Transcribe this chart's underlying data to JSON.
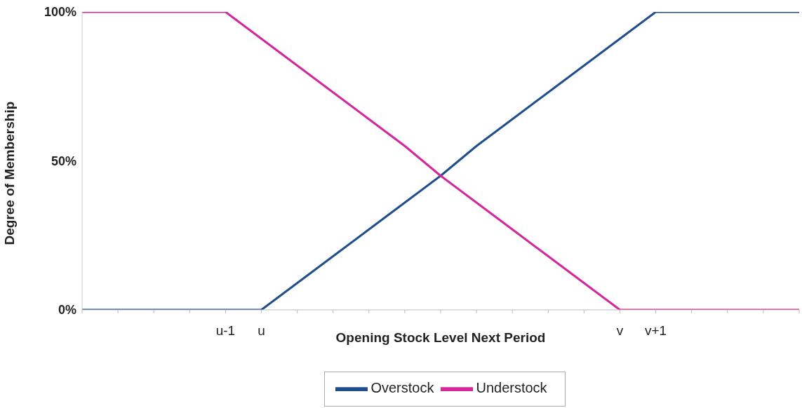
{
  "chart_data": {
    "type": "line",
    "xlabel": "Opening Stock Level Next Period",
    "ylabel": "Degree of Membership",
    "categories": [
      null,
      null,
      null,
      null,
      "u-1",
      "u",
      null,
      null,
      null,
      null,
      null,
      null,
      null,
      null,
      null,
      "v",
      "v+1",
      null,
      null,
      null,
      null
    ],
    "series": [
      {
        "name": "Overstock",
        "color": "#1f4e8c",
        "values": [
          0,
          0,
          0,
          0,
          0,
          0,
          9,
          18,
          27,
          36,
          45,
          55,
          64,
          73,
          82,
          91,
          100,
          100,
          100,
          100,
          100
        ]
      },
      {
        "name": "Understock",
        "color": "#d4279a",
        "values": [
          100,
          100,
          100,
          100,
          100,
          91,
          82,
          73,
          64,
          55,
          45,
          36,
          27,
          18,
          9,
          0,
          0,
          0,
          0,
          0,
          0
        ]
      }
    ],
    "ylim": [
      0,
      100
    ],
    "yticks": [
      {
        "value": 0,
        "label": "0%"
      },
      {
        "value": 50,
        "label": "50%"
      },
      {
        "value": 100,
        "label": "100%"
      }
    ],
    "grid": false,
    "legend": "bottom",
    "marker": "none",
    "line_style": "solid"
  }
}
